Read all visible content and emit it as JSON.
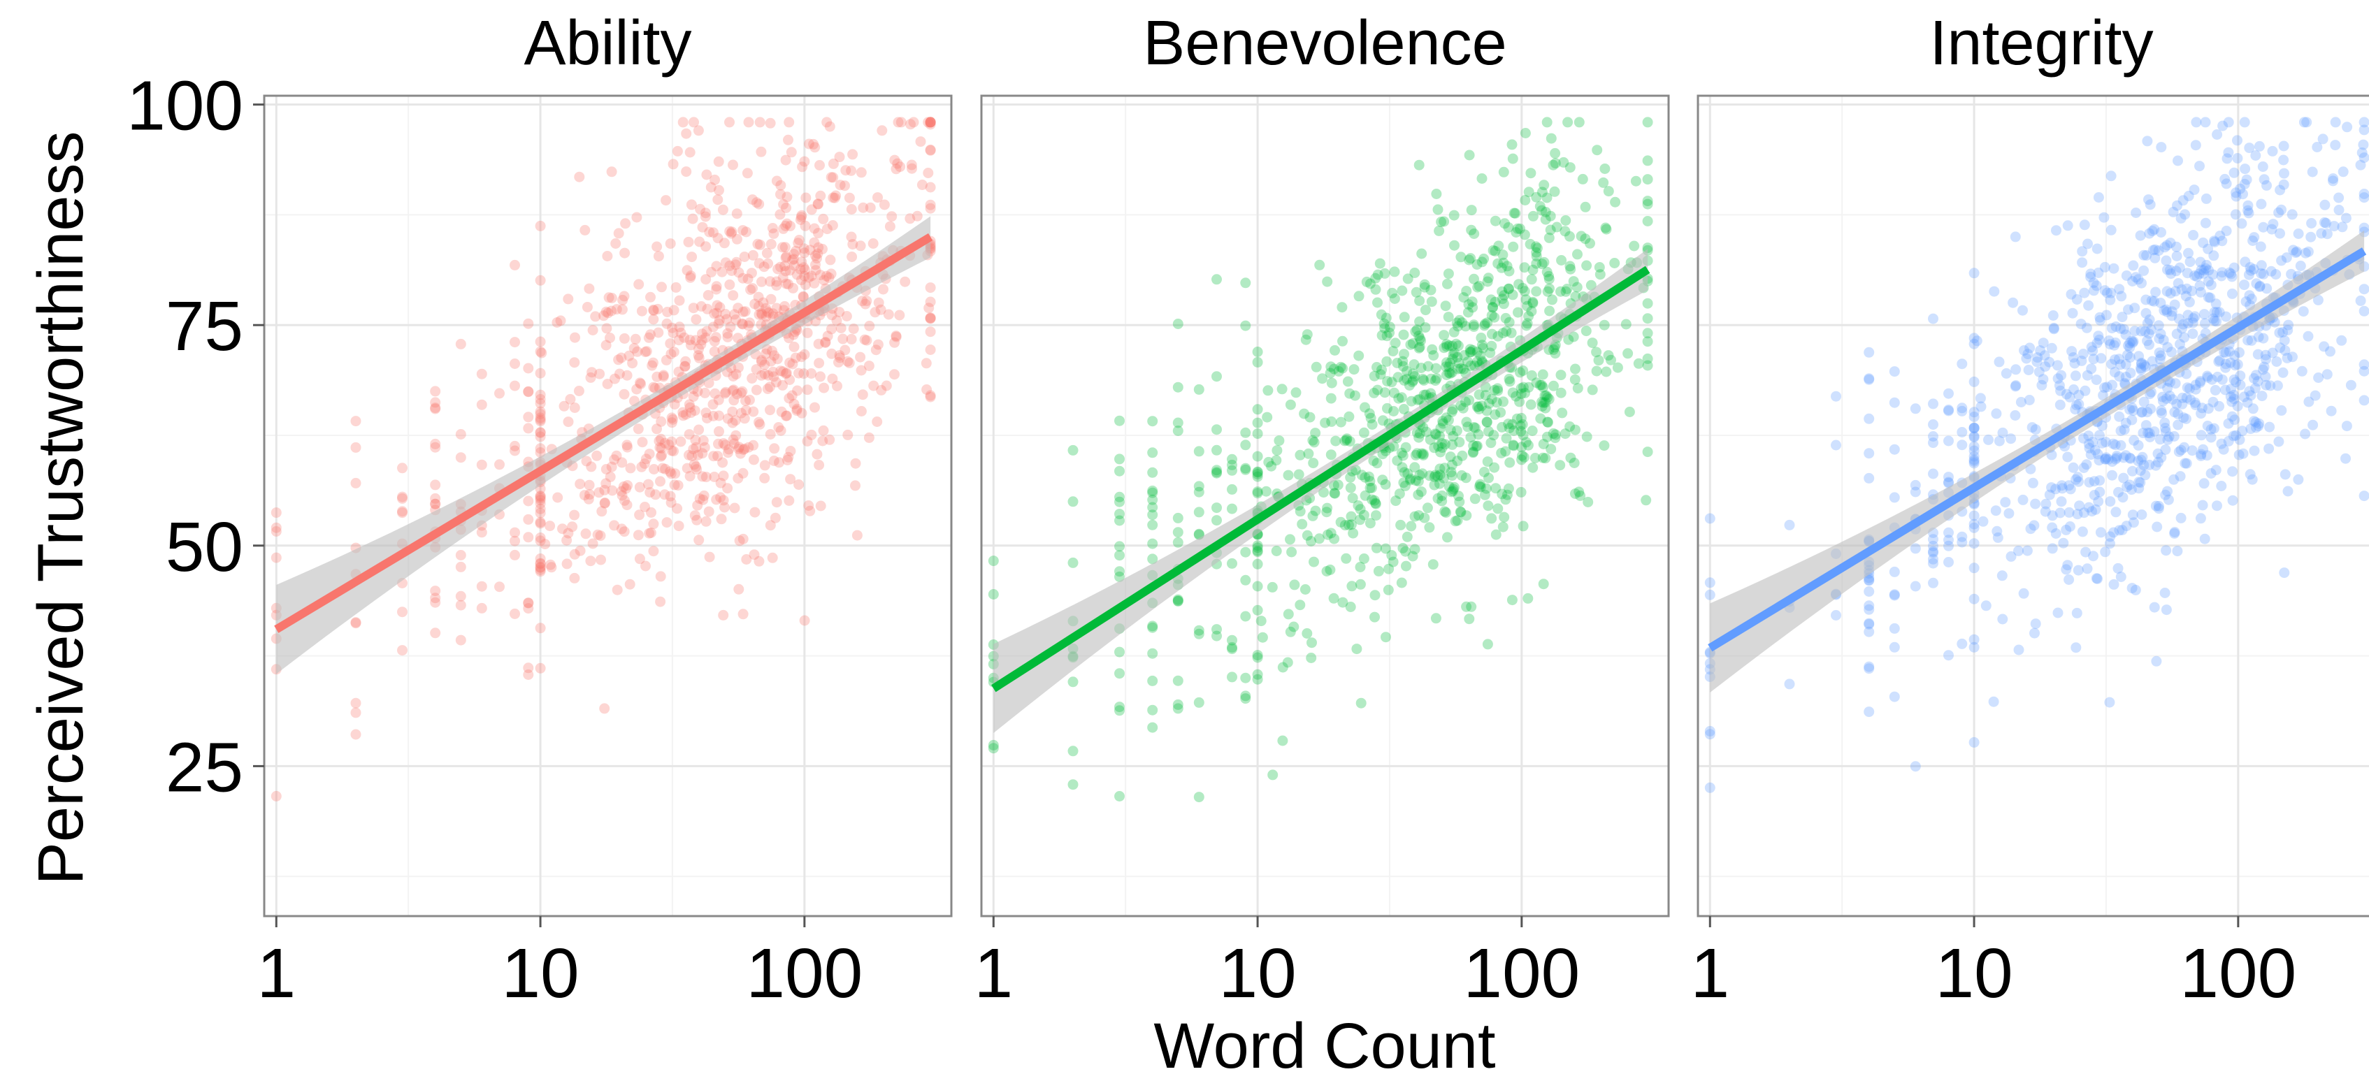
{
  "chart_data": {
    "type": "scatter",
    "facet_by": "trust dimension",
    "facets": [
      {
        "name": "Ability",
        "color": "#F8766D",
        "fit": {
          "type": "linear",
          "x_scale": "log10",
          "x": [
            1,
            300
          ],
          "y": [
            40.5,
            85.0
          ],
          "ci_half_width": 2.0
        }
      },
      {
        "name": "Benevolence",
        "color": "#00BA38",
        "fit": {
          "type": "linear",
          "x_scale": "log10",
          "x": [
            1,
            300
          ],
          "y": [
            33.8,
            81.3
          ],
          "ci_half_width": 2.0
        }
      },
      {
        "name": "Integrity",
        "color": "#619CFF",
        "fit": {
          "type": "linear",
          "x_scale": "log10",
          "x": [
            1,
            300
          ],
          "y": [
            38.4,
            83.4
          ],
          "ci_half_width": 2.0
        }
      }
    ],
    "points_per_facet_approx": 1000,
    "point_opacity": 0.3,
    "xlabel": "Word Count",
    "ylabel": "Perceived Trustworthiness",
    "x_scale": "log10",
    "xlim": [
      0.9,
      360
    ],
    "ylim": [
      8,
      101
    ],
    "x_ticks": [
      1,
      10,
      100
    ],
    "x_tick_labels": [
      "1",
      "10",
      "100"
    ],
    "y_ticks": [
      25,
      50,
      75,
      100
    ],
    "y_tick_labels": [
      "25",
      "50",
      "75",
      "100"
    ],
    "grid": true,
    "legend": "none",
    "colors": {
      "panel_border": "#888888",
      "grid_major": "#E6E6E6",
      "grid_minor": "#F3F3F3",
      "ci_band": "#BEBEBE"
    }
  }
}
